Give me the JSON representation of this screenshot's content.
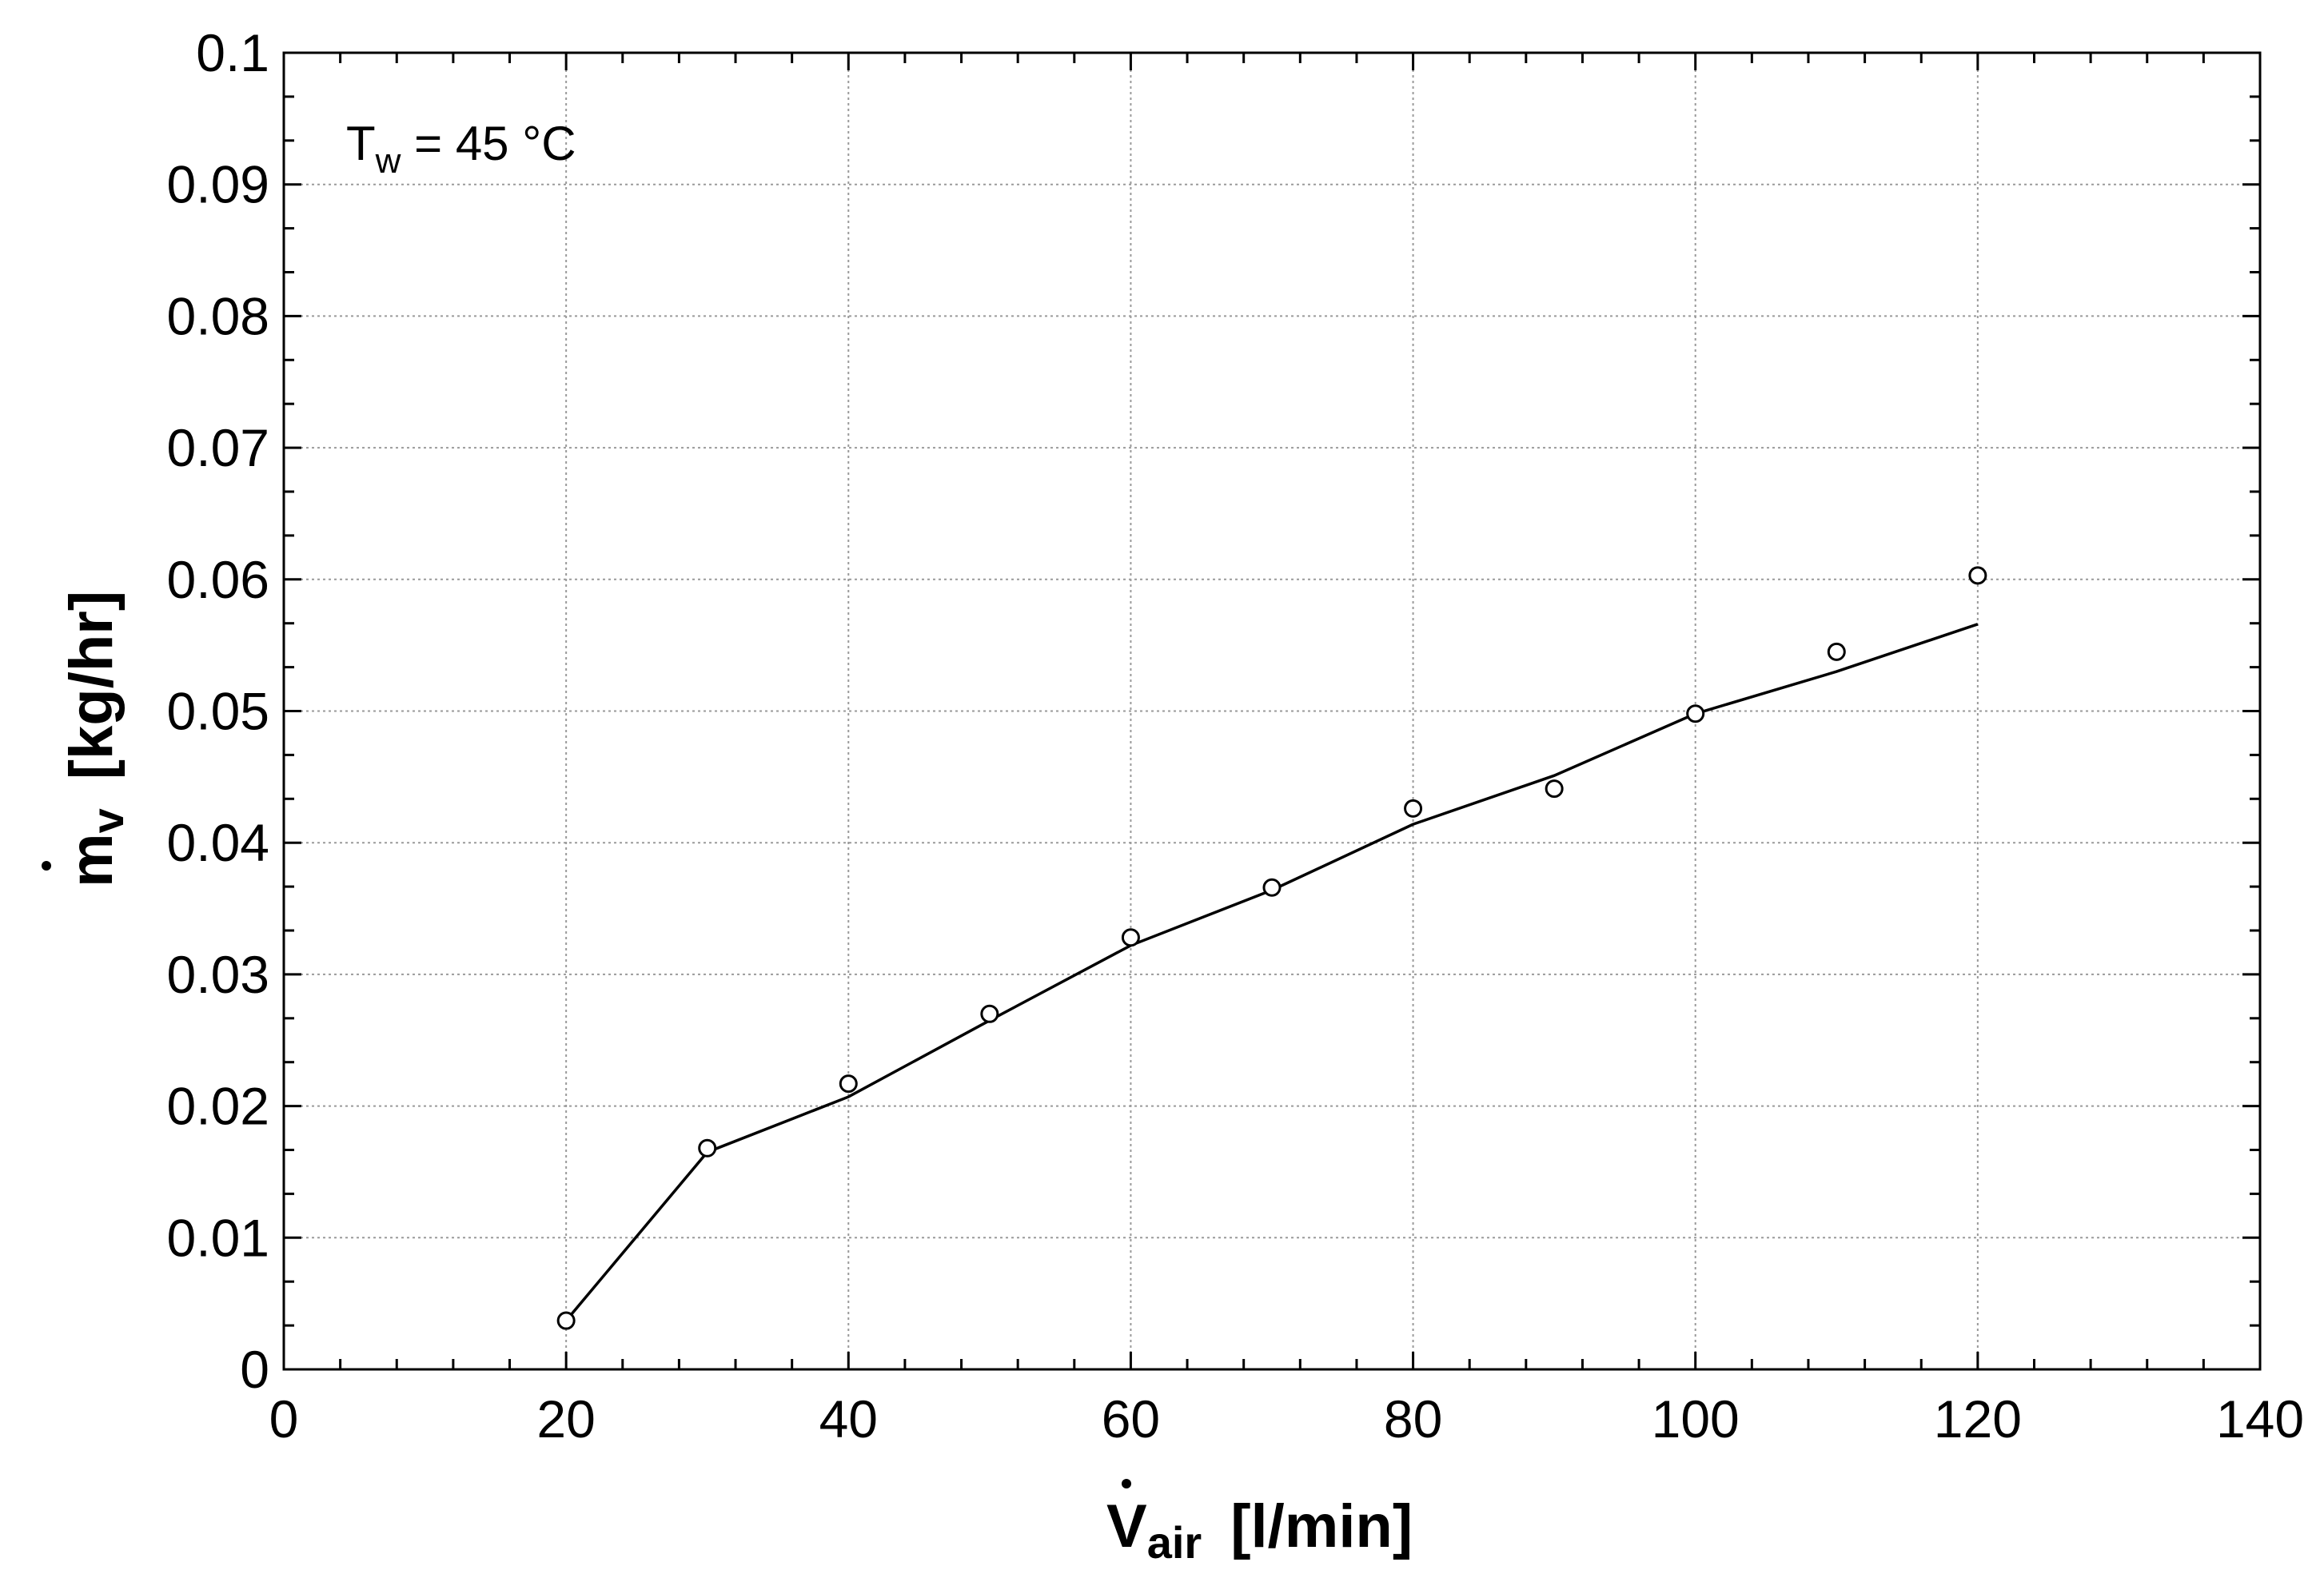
{
  "chart_data": {
    "type": "scatter",
    "xlim": [
      0,
      140
    ],
    "ylim": [
      0,
      0.1
    ],
    "x_ticks": [
      0,
      20,
      40,
      60,
      80,
      100,
      120,
      140
    ],
    "x_tick_labels": [
      "0",
      "20",
      "40",
      "60",
      "80",
      "100",
      "120",
      "140"
    ],
    "y_ticks": [
      0,
      0.01,
      0.02,
      0.03,
      0.04,
      0.05,
      0.06,
      0.07,
      0.08,
      0.09,
      0.1
    ],
    "y_tick_labels": [
      "0",
      "0.01",
      "0.02",
      "0.03",
      "0.04",
      "0.05",
      "0.06",
      "0.07",
      "0.08",
      "0.09",
      "0.1"
    ],
    "grid": true,
    "xlabel": {
      "main": "V",
      "sub": "air",
      "unit": "[l/min]"
    },
    "ylabel": {
      "main": "m",
      "sub": "v",
      "unit": "[kg/hr]"
    },
    "annotation": {
      "main": "T",
      "sub": "w",
      "rest": " = 45 °C"
    },
    "series": [
      {
        "kind": "markers",
        "marker": "open-circle",
        "x": [
          20,
          30,
          40,
          50,
          60,
          70,
          80,
          90,
          100,
          110,
          120
        ],
        "y": [
          0.0037,
          0.0168,
          0.0217,
          0.027,
          0.0328,
          0.0366,
          0.0426,
          0.0441,
          0.0498,
          0.0545,
          0.0603
        ]
      },
      {
        "kind": "line",
        "x": [
          20,
          30,
          40,
          50,
          60,
          70,
          80,
          90,
          100,
          110,
          120
        ],
        "y": [
          0.0037,
          0.0165,
          0.0207,
          0.0265,
          0.0322,
          0.0364,
          0.0414,
          0.0451,
          0.0498,
          0.053,
          0.0566
        ]
      }
    ],
    "colors": {
      "line": "#000000",
      "grid": "#9a9a9a",
      "background": "#ffffff"
    }
  }
}
